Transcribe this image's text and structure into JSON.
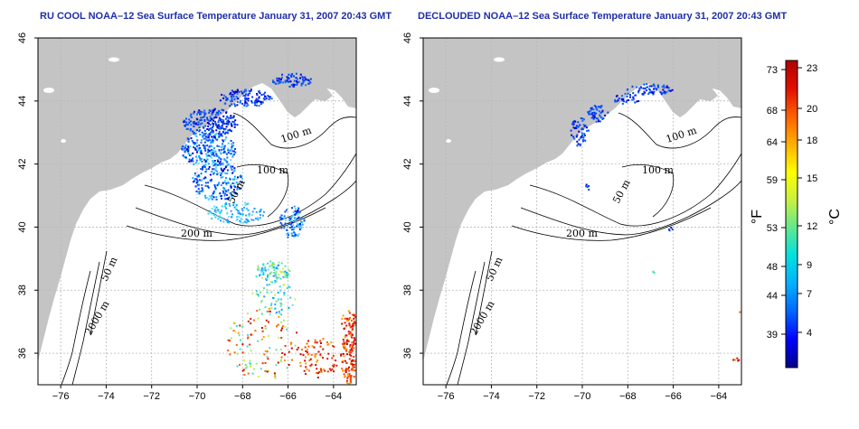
{
  "panels": [
    {
      "id": "left",
      "title": "RU COOL NOAA–12 Sea Surface Temperature January 31, 2007 20:43 GMT"
    },
    {
      "id": "right",
      "title": "DECLOUDED NOAA–12 Sea Surface Temperature January 31, 2007 20:43 GMT"
    }
  ],
  "map": {
    "lon_ticks": [
      "−76",
      "−74",
      "−72",
      "−70",
      "−68",
      "−66",
      "−64"
    ],
    "lat_ticks": [
      "36",
      "38",
      "40",
      "42",
      "44",
      "46"
    ],
    "lon_range": [
      -77,
      -63
    ],
    "lat_range": [
      35,
      46
    ],
    "land_color": "#c4c4c4",
    "grid": "dotted"
  },
  "contour_labels": [
    "100 m",
    "100 m",
    "50 m",
    "200 m",
    "50 m",
    "2000 m"
  ],
  "colorbar": {
    "fahrenheit_ticks": [
      "73",
      "68",
      "64",
      "59",
      "53",
      "48",
      "44",
      "39"
    ],
    "celsius_ticks": [
      "23",
      "20",
      "18",
      "15",
      "12",
      "9",
      "7",
      "4"
    ],
    "fahrenheit_unit": "°F",
    "celsius_unit": "°C",
    "colors": [
      "#00008b",
      "#0000ff",
      "#0066ff",
      "#00b0ff",
      "#00e0e0",
      "#60e890",
      "#c8f040",
      "#ffff00",
      "#ffb000",
      "#ff6000",
      "#e01000",
      "#b00000"
    ]
  }
}
